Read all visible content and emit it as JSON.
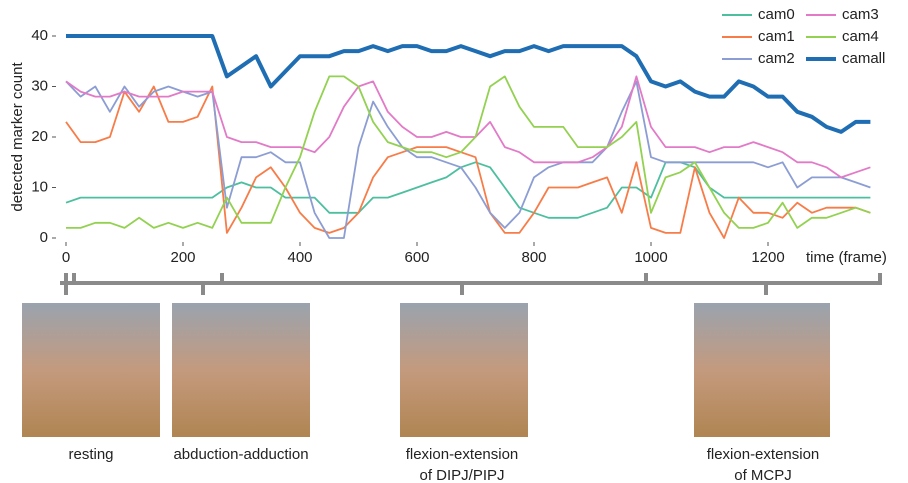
{
  "chart_data": {
    "type": "line",
    "ylabel": "detected marker count",
    "xlabel": "time (frame)",
    "xlim": [
      0,
      1400
    ],
    "ylim": [
      0,
      40
    ],
    "xticks": [
      0,
      200,
      400,
      600,
      800,
      1000,
      1200
    ],
    "yticks": [
      0,
      10,
      20,
      30,
      40
    ],
    "grid": false,
    "legend": "top-right",
    "x": [
      0,
      25,
      50,
      75,
      100,
      125,
      150,
      175,
      200,
      225,
      250,
      275,
      300,
      325,
      350,
      375,
      400,
      425,
      450,
      475,
      500,
      525,
      550,
      575,
      600,
      625,
      650,
      675,
      700,
      725,
      750,
      775,
      800,
      825,
      850,
      875,
      900,
      925,
      950,
      975,
      1000,
      1025,
      1050,
      1075,
      1100,
      1125,
      1150,
      1175,
      1200,
      1225,
      1250,
      1275,
      1300,
      1325,
      1350,
      1375
    ],
    "series": [
      {
        "name": "cam0",
        "color": "#4dbf9f",
        "values": [
          7,
          8,
          8,
          8,
          8,
          8,
          8,
          8,
          8,
          8,
          8,
          10,
          11,
          10,
          10,
          8,
          8,
          8,
          5,
          5,
          5,
          8,
          8,
          9,
          10,
          11,
          12,
          14,
          15,
          14,
          10,
          6,
          5,
          4,
          4,
          4,
          5,
          6,
          10,
          10,
          8,
          15,
          15,
          14,
          10,
          8,
          8,
          8,
          8,
          8,
          8,
          8,
          8,
          8,
          8,
          8
        ]
      },
      {
        "name": "cam1",
        "color": "#f77c48",
        "values": [
          23,
          19,
          19,
          20,
          29,
          25,
          30,
          23,
          23,
          24,
          30,
          1,
          6,
          12,
          14,
          10,
          5,
          2,
          1,
          2,
          5,
          12,
          16,
          17,
          18,
          18,
          18,
          17,
          16,
          5,
          1,
          1,
          5,
          10,
          10,
          10,
          11,
          12,
          5,
          15,
          2,
          1,
          1,
          14,
          5,
          0,
          8,
          5,
          5,
          4,
          7,
          5,
          6,
          6,
          6,
          5
        ]
      },
      {
        "name": "cam2",
        "color": "#8b9dd3",
        "values": [
          31,
          28,
          30,
          25,
          30,
          26,
          29,
          30,
          29,
          28,
          29,
          6,
          16,
          16,
          17,
          15,
          15,
          5,
          0,
          0,
          18,
          27,
          22,
          18,
          16,
          16,
          15,
          14,
          10,
          5,
          2,
          5,
          12,
          14,
          15,
          15,
          15,
          18,
          25,
          31,
          16,
          15,
          15,
          15,
          15,
          15,
          15,
          15,
          14,
          15,
          10,
          12,
          12,
          12,
          11,
          10
        ]
      },
      {
        "name": "cam3",
        "color": "#e27ac8",
        "values": [
          31,
          29,
          28,
          28,
          29,
          28,
          28,
          28,
          29,
          29,
          29,
          20,
          19,
          19,
          18,
          18,
          18,
          17,
          20,
          26,
          30,
          31,
          25,
          22,
          20,
          20,
          21,
          20,
          20,
          23,
          18,
          17,
          15,
          15,
          15,
          15,
          16,
          18,
          22,
          32,
          22,
          18,
          18,
          18,
          17,
          18,
          18,
          19,
          18,
          17,
          15,
          15,
          14,
          12,
          13,
          14
        ]
      },
      {
        "name": "cam4",
        "color": "#93d151",
        "values": [
          2,
          2,
          3,
          3,
          2,
          4,
          2,
          3,
          2,
          3,
          2,
          8,
          3,
          3,
          3,
          10,
          16,
          25,
          32,
          32,
          30,
          23,
          19,
          18,
          17,
          17,
          16,
          17,
          20,
          30,
          32,
          26,
          22,
          22,
          22,
          18,
          18,
          18,
          20,
          23,
          5,
          12,
          13,
          15,
          10,
          5,
          2,
          2,
          3,
          7,
          2,
          4,
          4,
          5,
          6,
          5
        ]
      },
      {
        "name": "camall",
        "color": "#1f6db3",
        "values": [
          40,
          40,
          40,
          40,
          40,
          40,
          40,
          40,
          40,
          40,
          40,
          32,
          34,
          36,
          30,
          33,
          36,
          36,
          36,
          37,
          37,
          38,
          37,
          38,
          38,
          37,
          37,
          38,
          37,
          36,
          37,
          37,
          38,
          37,
          38,
          38,
          38,
          38,
          38,
          36,
          31,
          30,
          31,
          29,
          28,
          28,
          31,
          30,
          28,
          28,
          25,
          24,
          22,
          21,
          23,
          23
        ]
      }
    ]
  },
  "panels": [
    [
      "resting"
    ],
    [
      "abduction-adduction"
    ],
    [
      "flexion-extension",
      "of DIPJ/PIPJ"
    ],
    [
      "flexion-extension",
      "of MCPJ"
    ]
  ]
}
